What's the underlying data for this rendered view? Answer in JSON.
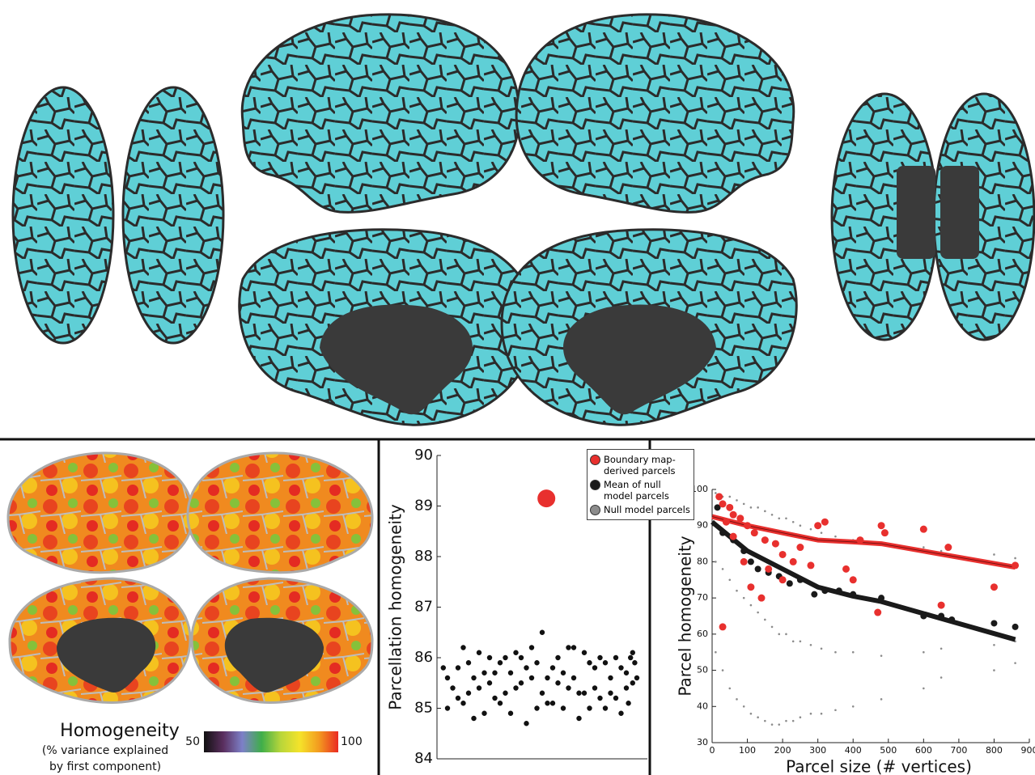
{
  "chart_data": [
    {
      "type": "scatter",
      "ylabel": "Parcellation homogeneity",
      "xlim": [
        0,
        1
      ],
      "ylim": [
        84,
        90
      ],
      "yticks": [
        84,
        85,
        86,
        87,
        88,
        89,
        90
      ],
      "series": [
        {
          "color": "#111111",
          "mode": "markers",
          "size": 3.2,
          "x": [
            0.05,
            0.1,
            0.15,
            0.2,
            0.25,
            0.3,
            0.35,
            0.4,
            0.45,
            0.5,
            0.55,
            0.6,
            0.65,
            0.7,
            0.75,
            0.8,
            0.85,
            0.9,
            0.93,
            0.05,
            0.1,
            0.15,
            0.2,
            0.25,
            0.3,
            0.35,
            0.4,
            0.45,
            0.5,
            0.55,
            0.6,
            0.65,
            0.7,
            0.75,
            0.8,
            0.85,
            0.9,
            0.93,
            0.075,
            0.125,
            0.175,
            0.225,
            0.275,
            0.325,
            0.375,
            0.425,
            0.475,
            0.525,
            0.575,
            0.625,
            0.675,
            0.725,
            0.775,
            0.825,
            0.875,
            0.91,
            0.94,
            0.03,
            0.125,
            0.175,
            0.225,
            0.275,
            0.325,
            0.375,
            0.425,
            0.475,
            0.525,
            0.575,
            0.625,
            0.675,
            0.725,
            0.775,
            0.825,
            0.875,
            0.92,
            0.95
          ],
          "values": [
            85.6,
            85.2,
            85.9,
            85.4,
            86.0,
            85.1,
            85.7,
            85.5,
            86.2,
            85.3,
            85.8,
            85.0,
            85.6,
            86.1,
            85.4,
            85.9,
            85.2,
            85.7,
            85.5,
            85.0,
            85.8,
            85.3,
            86.1,
            85.5,
            85.9,
            84.9,
            86.0,
            85.6,
            86.5,
            85.1,
            85.7,
            86.2,
            85.3,
            85.8,
            85.0,
            86.0,
            85.4,
            86.1,
            85.4,
            86.2,
            85.6,
            84.9,
            85.7,
            85.3,
            86.1,
            85.8,
            85.0,
            85.6,
            86.0,
            85.4,
            84.8,
            85.9,
            85.2,
            85.6,
            85.8,
            85.1,
            85.9,
            85.8,
            85.1,
            84.8,
            85.7,
            85.2,
            86.0,
            85.4,
            84.7,
            85.9,
            85.1,
            85.5,
            86.2,
            85.3,
            85.0,
            86.0,
            85.3,
            84.9,
            86.0,
            85.6
          ]
        },
        {
          "color": "#e8302e",
          "mode": "markers",
          "size": 11,
          "x": [
            0.52
          ],
          "values": [
            89.15
          ]
        }
      ]
    },
    {
      "type": "scatter",
      "xlabel": "Parcel size (# vertices)",
      "ylabel": "Parcel homogeneity",
      "xlim": [
        0,
        900
      ],
      "ylim": [
        30,
        100
      ],
      "xticks": [
        0,
        100,
        200,
        300,
        400,
        500,
        600,
        700,
        800,
        900
      ],
      "yticks": [
        30,
        40,
        50,
        60,
        70,
        80,
        90,
        100
      ],
      "series": [
        {
          "name": "Boundary map-derived parcels",
          "color": "#e8302e",
          "mode": "markers",
          "size": 4.5,
          "x": [
            20,
            30,
            50,
            60,
            80,
            100,
            120,
            150,
            180,
            200,
            230,
            250,
            280,
            300,
            320,
            380,
            400,
            420,
            480,
            490,
            600,
            650,
            670,
            800,
            860,
            30,
            90,
            110,
            140,
            160,
            470,
            200,
            60,
            40
          ],
          "values": [
            98,
            96,
            95,
            93,
            92,
            90,
            88,
            86,
            85,
            82,
            80,
            84,
            79,
            90,
            91,
            78,
            75,
            86,
            90,
            88,
            89,
            68,
            84,
            73,
            79,
            62,
            80,
            73,
            70,
            78,
            66,
            75,
            87,
            91
          ]
        },
        {
          "name": "Mean of null model parcels",
          "color": "#1a1a1a",
          "mode": "markers",
          "size": 4,
          "x": [
            15,
            30,
            60,
            90,
            110,
            130,
            160,
            190,
            220,
            250,
            290,
            320,
            360,
            400,
            480,
            600,
            650,
            680,
            800,
            860
          ],
          "values": [
            95,
            88,
            86,
            83,
            80,
            78,
            77,
            76,
            74,
            75,
            71,
            72,
            72,
            71,
            70,
            65,
            65,
            64,
            63,
            62
          ]
        },
        {
          "name": "Null model parcels",
          "color": "#8c8c8c",
          "mode": "markers",
          "size": 1.3,
          "x": [
            10,
            30,
            50,
            70,
            90,
            110,
            130,
            150,
            170,
            190,
            210,
            230,
            250,
            280,
            310,
            350,
            400,
            480,
            600,
            650,
            800,
            860,
            10,
            30,
            50,
            70,
            90,
            110,
            130,
            150,
            170,
            190,
            210,
            230,
            250,
            280,
            310,
            350,
            400,
            480,
            600,
            650,
            800,
            860,
            10,
            30,
            50,
            70,
            90,
            110,
            130,
            150,
            170,
            190,
            210,
            230,
            250,
            280,
            310,
            350,
            400,
            480,
            600,
            650,
            800,
            860
          ],
          "values": [
            99,
            98,
            98,
            97,
            96,
            95,
            95,
            94,
            93,
            92,
            92,
            91,
            90,
            89,
            88,
            87,
            86,
            85,
            84,
            83,
            82,
            81,
            80,
            78,
            75,
            72,
            70,
            68,
            66,
            64,
            62,
            60,
            60,
            58,
            58,
            57,
            56,
            55,
            55,
            54,
            55,
            56,
            57,
            58,
            55,
            50,
            45,
            42,
            40,
            38,
            37,
            36,
            35,
            35,
            36,
            36,
            37,
            38,
            38,
            39,
            40,
            42,
            45,
            48,
            50,
            52
          ]
        },
        {
          "color": "#e8302e",
          "mode": "lines",
          "size": 3,
          "x": [
            0,
            100,
            200,
            300,
            400,
            480,
            860
          ],
          "values": [
            92.5,
            90,
            88,
            86,
            85.5,
            85,
            78.5
          ]
        },
        {
          "color": "#1a1a1a",
          "mode": "lines",
          "size": 3,
          "x": [
            0,
            100,
            200,
            300,
            400,
            480,
            860
          ],
          "values": [
            91,
            83,
            78,
            73,
            70.5,
            69,
            58.5
          ]
        }
      ]
    }
  ],
  "colorbar": {
    "title": "Homogeneity",
    "lines": [
      "(% variance explained",
      "by first component)"
    ],
    "min": 50,
    "max": 100,
    "colors": [
      "#111111",
      "#5a2e5e",
      "#7d80c8",
      "#3fae4a",
      "#b8d63a",
      "#f5e32a",
      "#f39a1f",
      "#ea2a22"
    ]
  }
}
